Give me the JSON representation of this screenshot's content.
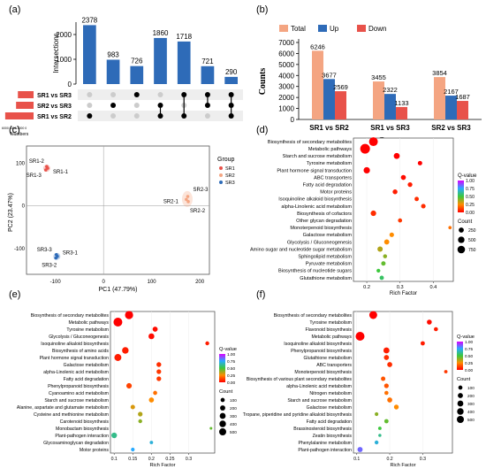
{
  "panels": {
    "a": {
      "label": "(a)",
      "ylabel": "Intersections",
      "bars": [
        2378,
        983,
        726,
        1860,
        1718,
        721,
        290
      ],
      "yticks": [
        0,
        1000,
        2000
      ],
      "sets": [
        "SR1 vs SR3",
        "SR2 vs SR3",
        "SR1 vs SR2"
      ],
      "set_sizes": [
        3455,
        3854,
        6246
      ],
      "set_size_axis": "6000 4000 2000 0",
      "set_size_label": "Numbers",
      "matrix": [
        [
          0,
          0,
          1
        ],
        [
          0,
          1,
          0
        ],
        [
          1,
          0,
          0
        ],
        [
          0,
          1,
          1
        ],
        [
          1,
          0,
          1
        ],
        [
          1,
          1,
          0
        ],
        [
          1,
          1,
          1
        ]
      ]
    },
    "b": {
      "label": "(b)",
      "legend": [
        "Total",
        "Up",
        "Down"
      ],
      "colors": [
        "#F4A582",
        "#2E6BB8",
        "#E8524A"
      ],
      "ylabel": "Counts",
      "xlabel": "Group",
      "categories": [
        "SR1 vs SR2",
        "SR1 vs SR3",
        "SR2 vs SR3"
      ],
      "series": [
        {
          "name": "Total",
          "values": [
            6246,
            3455,
            3854
          ]
        },
        {
          "name": "Up",
          "values": [
            3677,
            2322,
            2167
          ]
        },
        {
          "name": "Down",
          "values": [
            2569,
            1133,
            1687
          ]
        }
      ],
      "yticks": [
        0,
        1000,
        2000,
        3000,
        4000,
        5000,
        6000,
        7000
      ]
    },
    "c": {
      "label": "(c)",
      "xlabel": "PC1 (47.79%)",
      "ylabel": "PC2 (23.47%)",
      "xticks": [
        -100,
        0,
        100,
        200
      ],
      "yticks": [
        -100,
        0,
        100
      ],
      "legend_title": "Group",
      "groups": [
        "SR1",
        "SR2",
        "SR3"
      ],
      "group_colors": [
        "#E8524A",
        "#F4A582",
        "#2E6BB8"
      ],
      "points": [
        {
          "label": "SR1-2",
          "x": -118,
          "y": 92,
          "g": 0
        },
        {
          "label": "SR1-3",
          "x": -120,
          "y": 84,
          "g": 0
        },
        {
          "label": "SR1-1",
          "x": -116,
          "y": 88,
          "g": 0
        },
        {
          "label": "SR2-3",
          "x": 175,
          "y": 22,
          "g": 1
        },
        {
          "label": "SR2-1",
          "x": 172,
          "y": 15,
          "g": 1
        },
        {
          "label": "SR2-2",
          "x": 176,
          "y": 10,
          "g": 1
        },
        {
          "label": "SR3-3",
          "x": -98,
          "y": -114,
          "g": 2
        },
        {
          "label": "SR3-1",
          "x": -96,
          "y": -118,
          "g": 2
        },
        {
          "label": "SR3-2",
          "x": -99,
          "y": -122,
          "g": 2
        }
      ]
    },
    "d": {
      "label": "(d)",
      "xlabel": "Rich Factor",
      "xticks": [
        0.2,
        0.3,
        0.4
      ],
      "xlim": [
        0.16,
        0.46
      ],
      "legend_q": "Q-value",
      "qticks": [
        "1.00",
        "0.75",
        "0.50",
        "0.25",
        "0.00"
      ],
      "legend_count": "Count",
      "count_ticks": [
        "250",
        "500",
        "750"
      ],
      "terms": [
        "Biosynthesis of secondary metabolites",
        "Metabolic pathways",
        "Starch and sucrose metabolism",
        "Tyrosine metabolism",
        "Plant hormone signal transduction",
        "ABC transporters",
        "Fatty acid degradation",
        "Motor proteins",
        "Isoquinoline alkaloid biosynthesis",
        "alpha-Linolenic acid metabolism",
        "Biosynthesis of cofactors",
        "Other glycan degradation",
        "Monoterpenoid biosynthesis",
        "Galactose metabolism",
        "Glycolysis / Gluconeogenesis",
        "Amino sugar and nucleotide sugar metabolism",
        "Sphingolipid metabolism",
        "Pyruvate metabolism",
        "Biosynthesis of nucleotide sugars",
        "Glutathione metabolism"
      ],
      "x": [
        0.22,
        0.195,
        0.29,
        0.36,
        0.2,
        0.31,
        0.33,
        0.285,
        0.35,
        0.37,
        0.22,
        0.3,
        0.45,
        0.275,
        0.26,
        0.24,
        0.255,
        0.25,
        0.235,
        0.245
      ],
      "count": [
        700,
        900,
        250,
        100,
        300,
        150,
        120,
        130,
        90,
        110,
        200,
        80,
        30,
        110,
        160,
        180,
        70,
        100,
        60,
        90
      ],
      "q": [
        0,
        0,
        0,
        0,
        0,
        0.02,
        0.05,
        0.05,
        0.08,
        0.08,
        0.08,
        0.1,
        0.2,
        0.25,
        0.25,
        0.35,
        0.4,
        0.45,
        0.5,
        0.55
      ]
    },
    "e": {
      "label": "(e)",
      "xlabel": "Rich Factor",
      "xticks": [
        0.1,
        0.15,
        0.2,
        0.25,
        0.3
      ],
      "xlim": [
        0.09,
        0.37
      ],
      "legend_q": "Q-value",
      "qticks": [
        "1.00",
        "0.75",
        "0.50",
        "0.25",
        "0.00"
      ],
      "legend_count": "Count",
      "count_ticks": [
        "100",
        "200",
        "300",
        "400",
        "500"
      ],
      "terms": [
        "Biosynthesis of secondary metabolites",
        "Metabolic pathways",
        "Tyrosine metabolism",
        "Glycolysis / Gluconeogenesis",
        "Isoquinoline alkaloid biosynthesis",
        "Biosynthesis of amino acids",
        "Plant hormone signal transduction",
        "Galactose metabolism",
        "alpha-Linolenic acid metabolism",
        "Fatty acid degradation",
        "Phenylpropanoid biosynthesis",
        "Cyanoamino acid metabolism",
        "Starch and sucrose metabolism",
        "Alanine, aspartate and glutamate metabolism",
        "Cysteine and methionine metabolism",
        "Carotenoid biosynthesis",
        "Monobactam biosynthesis",
        "Plant-pathogen interaction",
        "Glycosaminoglycan degradation",
        "Motor proteins"
      ],
      "x": [
        0.14,
        0.11,
        0.21,
        0.2,
        0.35,
        0.13,
        0.11,
        0.22,
        0.22,
        0.22,
        0.14,
        0.21,
        0.2,
        0.15,
        0.17,
        0.17,
        0.36,
        0.1,
        0.2,
        0.15
      ],
      "count": [
        450,
        550,
        120,
        180,
        50,
        250,
        300,
        100,
        90,
        90,
        150,
        60,
        120,
        80,
        90,
        50,
        10,
        160,
        30,
        40
      ],
      "q": [
        0,
        0,
        0.02,
        0.02,
        0.05,
        0.05,
        0.05,
        0.08,
        0.1,
        0.1,
        0.12,
        0.2,
        0.25,
        0.3,
        0.35,
        0.4,
        0.45,
        0.6,
        0.7,
        0.75
      ]
    },
    "f": {
      "label": "(f)",
      "xlabel": "Rich Factor",
      "xticks": [
        0.1,
        0.2,
        0.3
      ],
      "xlim": [
        0.09,
        0.39
      ],
      "legend_q": "Q-value",
      "qticks": [
        "1.00",
        "0.75",
        "0.50",
        "0.25",
        "0.00"
      ],
      "legend_count": "Count",
      "count_ticks": [
        "100",
        "200",
        "300",
        "400",
        "500"
      ],
      "terms": [
        "Biosynthesis of secondary metabolites",
        "Tyrosine metabolism",
        "Flavonoid biosynthesis",
        "Metabolic pathways",
        "Isoquinoline alkaloid biosynthesis",
        "Phenylpropanoid biosynthesis",
        "Glutathione metabolism",
        "ABC transporters",
        "Monoterpenoid biosynthesis",
        "Biosynthesis of various plant secondary metabolites",
        "alpha-Linolenic acid metabolism",
        "Nitrogen metabolism",
        "Starch and sucrose metabolism",
        "Galactose metabolism",
        "Tropane, piperidine and pyridine alkaloid biosynthesis",
        "Fatty acid degradation",
        "Brassinosteroid biosynthesis",
        "Zeatin biosynthesis",
        "Phenylalanine metabolism",
        "Plant-pathogen interaction"
      ],
      "x": [
        0.15,
        0.32,
        0.34,
        0.11,
        0.3,
        0.19,
        0.19,
        0.2,
        0.37,
        0.18,
        0.19,
        0.19,
        0.2,
        0.22,
        0.16,
        0.19,
        0.17,
        0.17,
        0.16,
        0.11
      ],
      "count": [
        420,
        110,
        60,
        560,
        70,
        200,
        120,
        120,
        30,
        80,
        90,
        60,
        120,
        100,
        40,
        70,
        30,
        20,
        50,
        130
      ],
      "q": [
        0,
        0.02,
        0.05,
        0,
        0.05,
        0.05,
        0.08,
        0.08,
        0.1,
        0.15,
        0.15,
        0.2,
        0.2,
        0.25,
        0.4,
        0.45,
        0.5,
        0.6,
        0.7,
        0.85
      ]
    }
  }
}
